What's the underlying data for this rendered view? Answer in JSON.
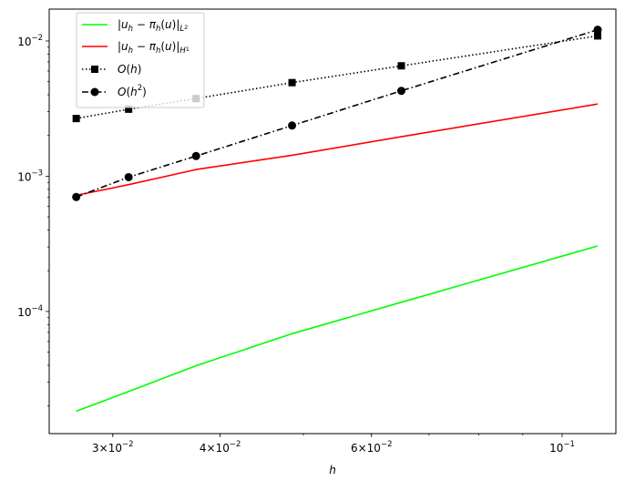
{
  "chart_data": {
    "type": "line",
    "title": "",
    "xlabel": "h",
    "ylabel": "",
    "xscale": "log",
    "yscale": "log",
    "xlim": [
      0.0253,
      0.1155
    ],
    "ylim": [
      1.25e-05,
      0.0172
    ],
    "grid": false,
    "legend_position": "top-left",
    "x": [
      0.0272,
      0.0313,
      0.0375,
      0.0485,
      0.065,
      0.11
    ],
    "series": [
      {
        "name": "|u_h − π_h(u)|_L²",
        "color": "#00ff00",
        "line_style": "solid",
        "marker": "none",
        "values": [
          1.83e-05,
          2.56e-05,
          3.97e-05,
          6.85e-05,
          0.000117,
          0.000305
        ]
      },
      {
        "name": "|u_h − π_h(u)|_H¹",
        "color": "#ff0000",
        "line_style": "solid",
        "marker": "none",
        "values": [
          0.000723,
          0.000866,
          0.00112,
          0.00143,
          0.00196,
          0.00342
        ]
      },
      {
        "name": "O(h)",
        "color": "#000000",
        "line_style": "dotted",
        "marker": "square",
        "values": [
          0.00267,
          0.00313,
          0.00375,
          0.00492,
          0.00655,
          0.0109
        ]
      },
      {
        "name": "O(h²)",
        "color": "#000000",
        "line_style": "dashdot",
        "marker": "circle",
        "values": [
          0.000702,
          0.000984,
          0.00141,
          0.00237,
          0.00428,
          0.0121
        ]
      }
    ],
    "x_ticks": [
      {
        "value": 0.03,
        "mantissa": "3",
        "exp": "−2"
      },
      {
        "value": 0.04,
        "mantissa": "4",
        "exp": "−2"
      },
      {
        "value": 0.06,
        "mantissa": "6",
        "exp": "−2"
      },
      {
        "value": 0.1,
        "mantissa": "",
        "exp": "−1"
      }
    ],
    "y_ticks": [
      {
        "value": 0.0001,
        "exp": "−4"
      },
      {
        "value": 0.001,
        "exp": "−3"
      },
      {
        "value": 0.01,
        "exp": "−2"
      }
    ]
  }
}
